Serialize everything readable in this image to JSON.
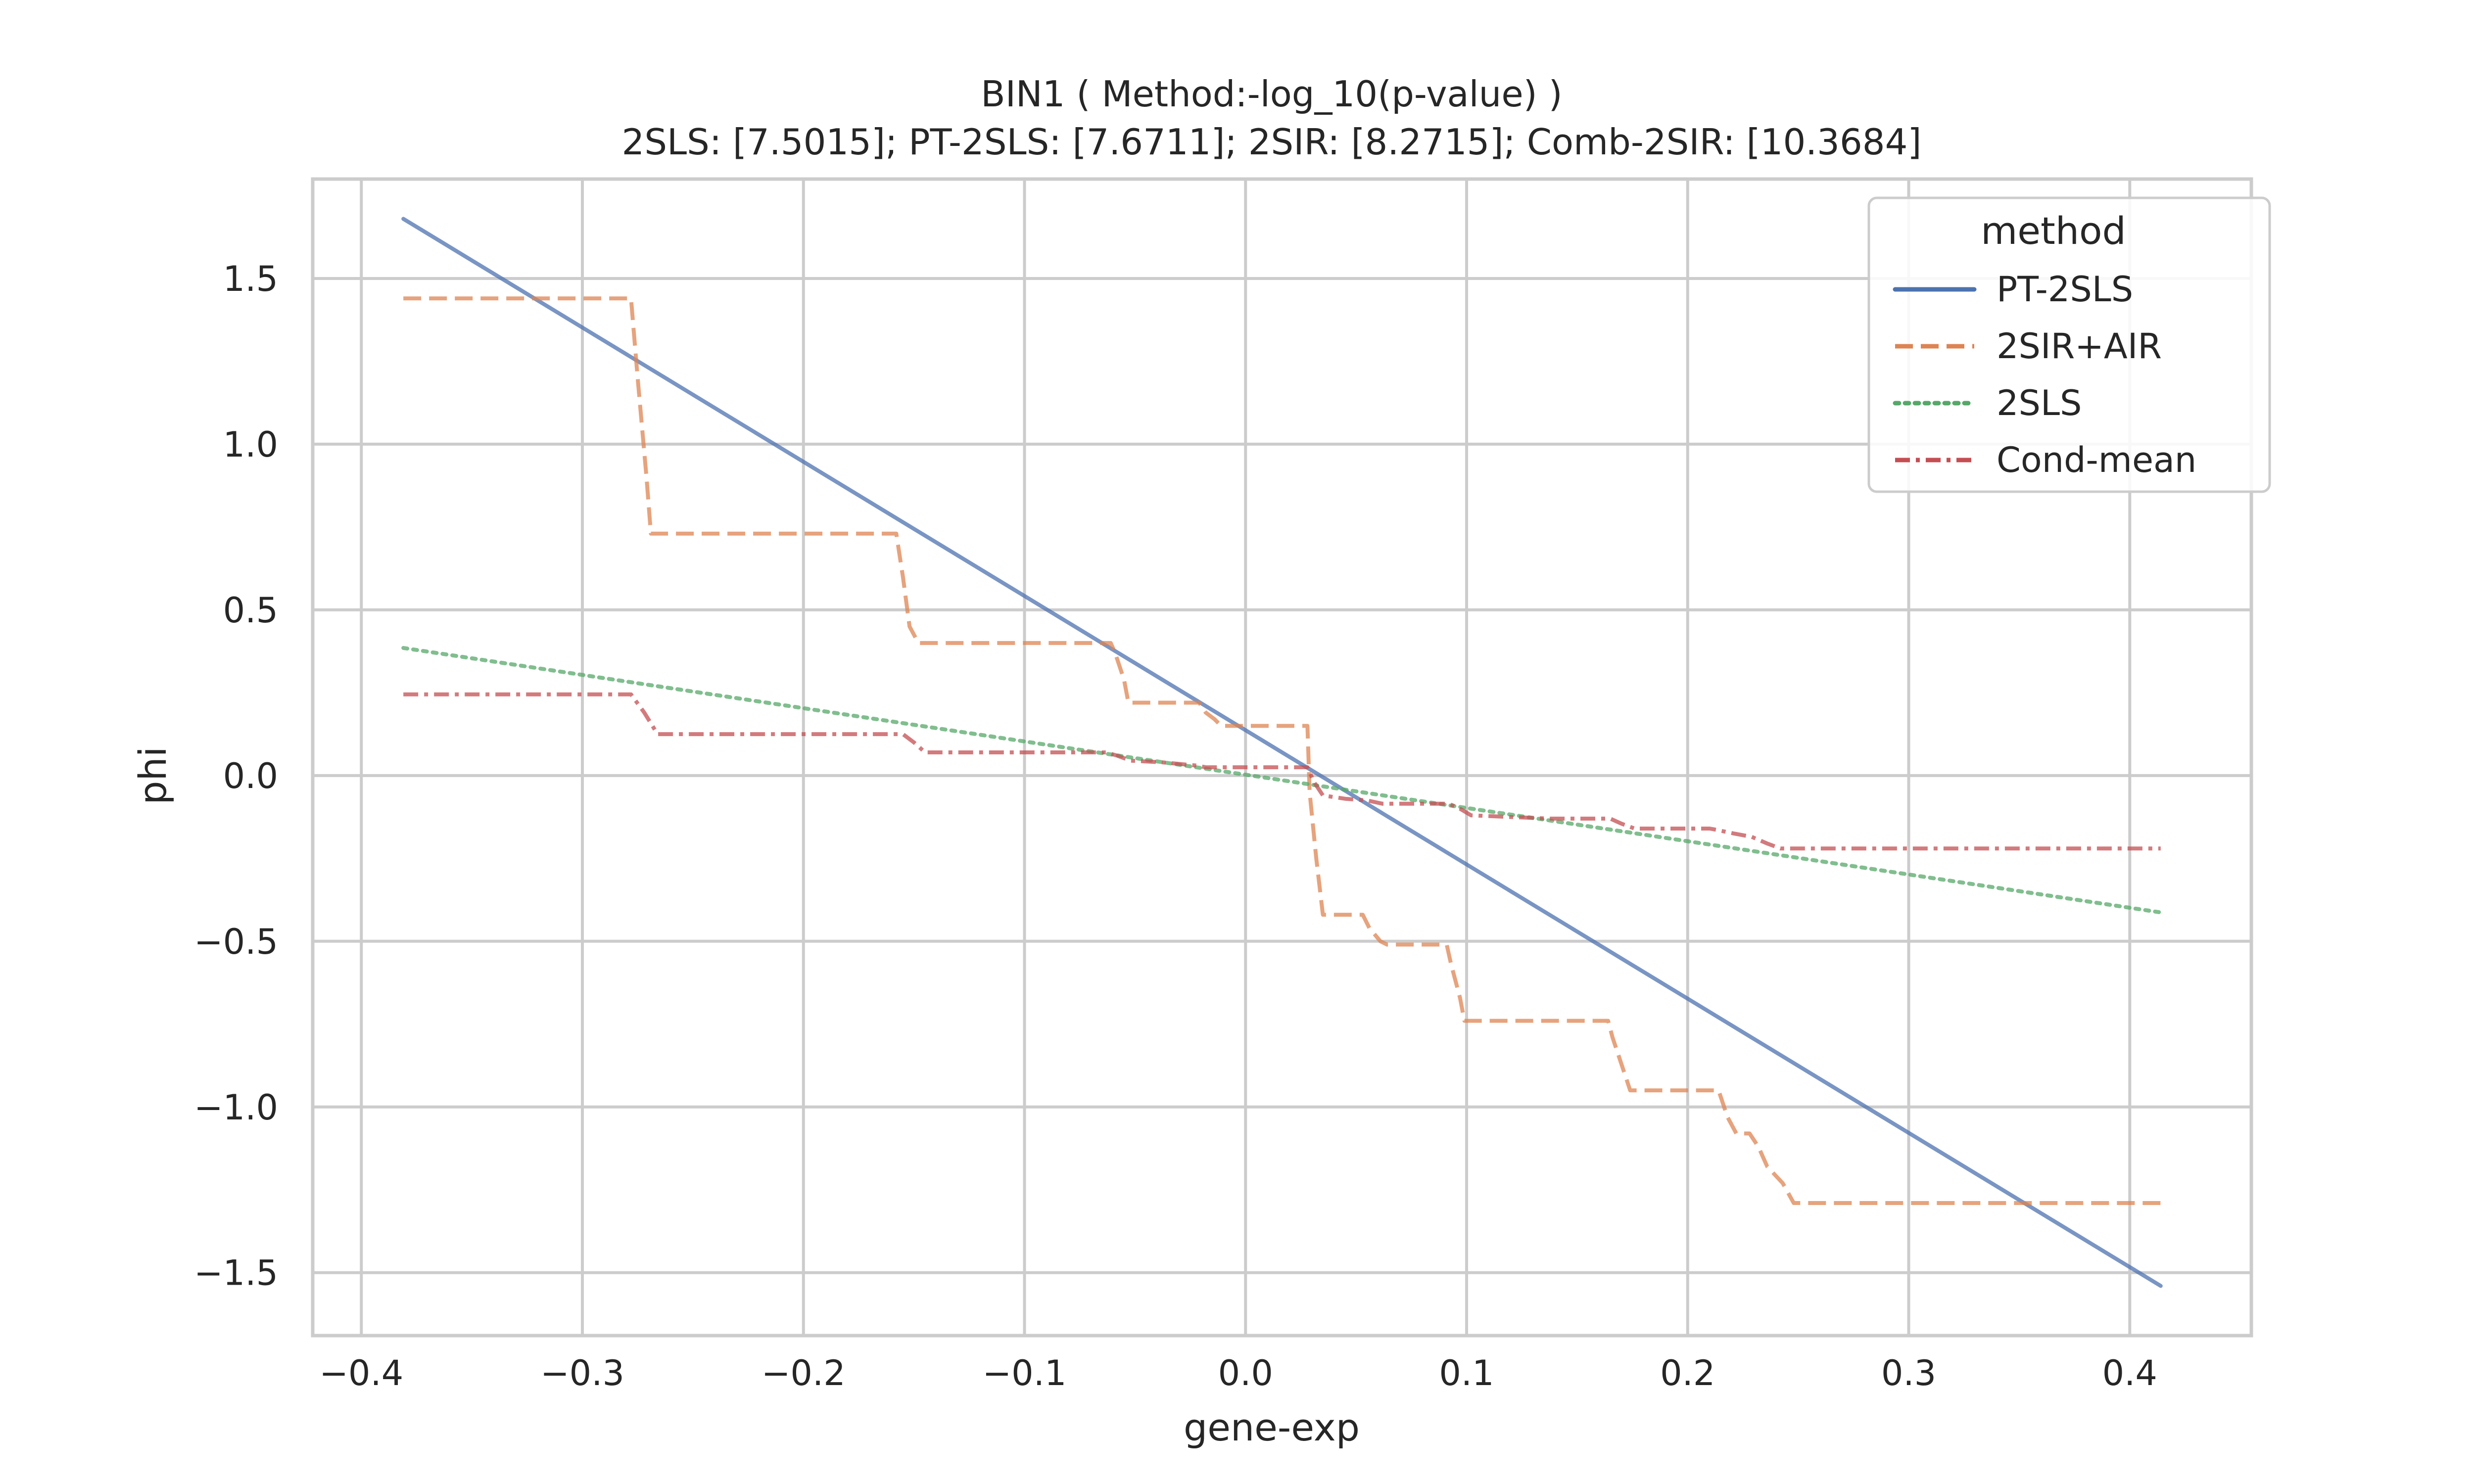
{
  "chart_data": {
    "type": "line",
    "title": "BIN1 ( Method:-log_10(p-value) )",
    "subtitle": "2SLS: [7.5015]; PT-2SLS: [7.6711]; 2SIR: [8.2715]; Comb-2SIR: [10.3684]",
    "xlabel": "gene-exp",
    "ylabel": "phi",
    "xlim": [
      -0.422,
      0.455
    ],
    "ylim": [
      -1.69,
      1.8
    ],
    "xticks": [
      -0.4,
      -0.3,
      -0.2,
      -0.1,
      0.0,
      0.1,
      0.2,
      0.3,
      0.4
    ],
    "xtick_labels": [
      "−0.4",
      "−0.3",
      "−0.2",
      "−0.1",
      "0.0",
      "0.1",
      "0.2",
      "0.3",
      "0.4"
    ],
    "yticks": [
      1.5,
      1.0,
      0.5,
      0.0,
      -0.5,
      -1.0,
      -1.5
    ],
    "ytick_labels": [
      "1.5",
      "1.0",
      "0.5",
      "0.0",
      "−0.5",
      "−1.0",
      "−1.5"
    ],
    "grid": true,
    "legend": {
      "title": "method",
      "placement": "top-right"
    },
    "series": [
      {
        "name": "PT-2SLS",
        "color": "#4c72b0",
        "dash": "solid",
        "x": [
          -0.381,
          0.414
        ],
        "y": [
          1.68,
          -1.54
        ]
      },
      {
        "name": "2SIR+AIR",
        "color": "#dd8452",
        "dash": "dashed",
        "x": [
          -0.381,
          -0.278,
          -0.275,
          -0.271,
          -0.269,
          -0.263,
          -0.158,
          -0.155,
          -0.152,
          -0.148,
          -0.061,
          -0.059,
          -0.055,
          -0.053,
          -0.045,
          -0.021,
          -0.018,
          -0.014,
          -0.011,
          0.028,
          0.029,
          0.032,
          0.035,
          0.045,
          0.053,
          0.056,
          0.061,
          0.064,
          0.07,
          0.091,
          0.093,
          0.097,
          0.099,
          0.105,
          0.164,
          0.166,
          0.17,
          0.174,
          0.182,
          0.214,
          0.218,
          0.222,
          0.228,
          0.232,
          0.236,
          0.243,
          0.248,
          0.414
        ],
        "y": [
          1.44,
          1.44,
          1.2,
          0.9,
          0.73,
          0.73,
          0.73,
          0.6,
          0.45,
          0.4,
          0.4,
          0.37,
          0.29,
          0.22,
          0.22,
          0.22,
          0.19,
          0.17,
          0.15,
          0.15,
          -0.05,
          -0.25,
          -0.42,
          -0.42,
          -0.42,
          -0.46,
          -0.5,
          -0.51,
          -0.51,
          -0.51,
          -0.57,
          -0.67,
          -0.74,
          -0.74,
          -0.74,
          -0.79,
          -0.87,
          -0.95,
          -0.95,
          -0.95,
          -1.03,
          -1.08,
          -1.08,
          -1.12,
          -1.18,
          -1.23,
          -1.29,
          -1.29
        ]
      },
      {
        "name": "2SLS",
        "color": "#55a868",
        "dash": "dotted",
        "x": [
          -0.381,
          0.414
        ],
        "y": [
          0.385,
          -0.413
        ]
      },
      {
        "name": "Cond-mean",
        "color": "#c44e52",
        "dash": "dashdot",
        "x": [
          -0.381,
          -0.278,
          -0.272,
          -0.266,
          -0.155,
          -0.15,
          -0.145,
          -0.063,
          -0.058,
          -0.052,
          -0.038,
          -0.022,
          -0.018,
          0.028,
          0.031,
          0.035,
          0.045,
          0.055,
          0.062,
          0.092,
          0.097,
          0.102,
          0.12,
          0.138,
          0.165,
          0.17,
          0.176,
          0.21,
          0.214,
          0.221,
          0.229,
          0.236,
          0.242,
          0.414
        ],
        "y": [
          0.245,
          0.245,
          0.19,
          0.125,
          0.125,
          0.1,
          0.07,
          0.07,
          0.06,
          0.045,
          0.04,
          0.03,
          0.025,
          0.025,
          -0.02,
          -0.06,
          -0.07,
          -0.075,
          -0.085,
          -0.085,
          -0.1,
          -0.12,
          -0.125,
          -0.13,
          -0.13,
          -0.145,
          -0.16,
          -0.16,
          -0.165,
          -0.175,
          -0.185,
          -0.205,
          -0.22,
          -0.22
        ]
      }
    ]
  }
}
